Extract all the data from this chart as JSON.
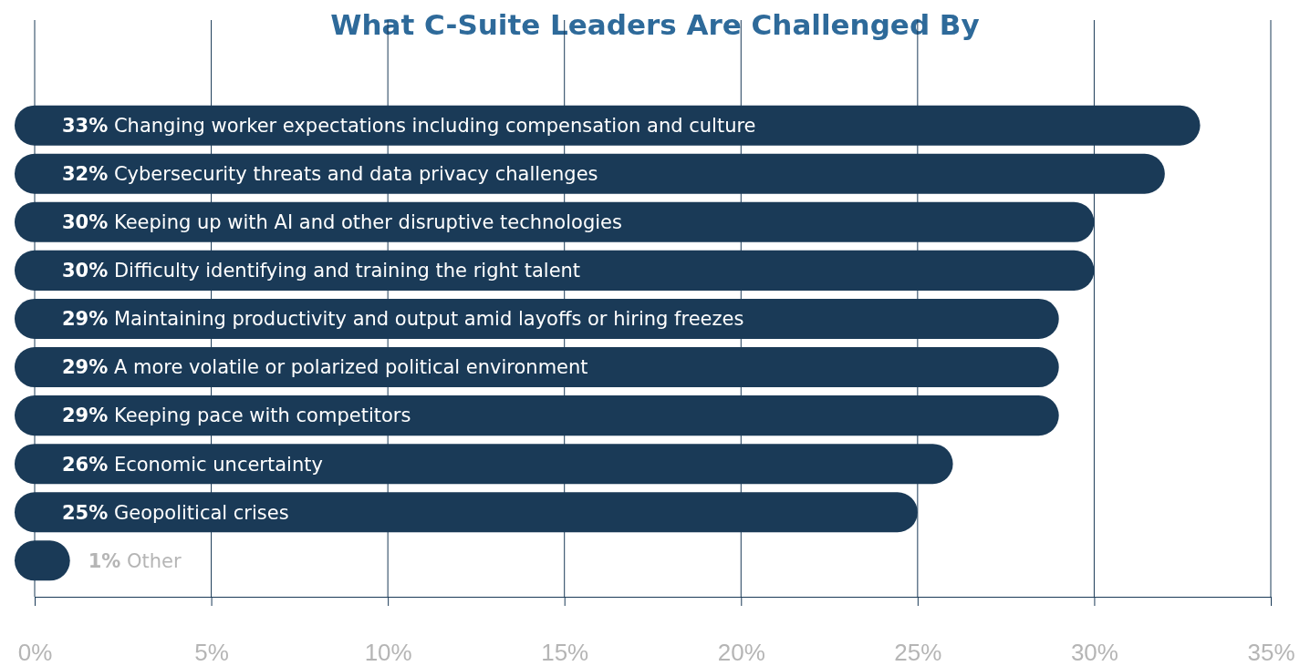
{
  "chart_data": {
    "type": "bar",
    "orientation": "horizontal",
    "title": "What C-Suite Leaders Are Challenged By",
    "categories": [
      "Changing worker expectations including compensation and culture",
      "Cybersecurity threats and data privacy challenges",
      "Keeping up with AI and other disruptive technologies",
      "Difficulty identifying and training the right talent",
      "Maintaining productivity and output amid layoffs or hiring freezes",
      "A more volatile or polarized political environment",
      "Keeping pace with competitors",
      "Economic uncertainty",
      "Geopolitical crises",
      "Other"
    ],
    "values": [
      33,
      32,
      30,
      30,
      29,
      29,
      29,
      26,
      25,
      1
    ],
    "value_labels": [
      "33%",
      "32%",
      "30%",
      "30%",
      "29%",
      "29%",
      "29%",
      "26%",
      "25%",
      "1%"
    ],
    "color": "#1a3a57",
    "xlim": [
      0,
      35
    ],
    "xticks": [
      {
        "value": 0,
        "label": "0%"
      },
      {
        "value": 5,
        "label": "5%"
      },
      {
        "value": 10,
        "label": "10%"
      },
      {
        "value": 15,
        "label": "15%"
      },
      {
        "value": 20,
        "label": "20%"
      },
      {
        "value": 25,
        "label": "25%"
      },
      {
        "value": 30,
        "label": "30%"
      },
      {
        "value": 35,
        "label": "35%"
      }
    ],
    "grid": "x"
  }
}
